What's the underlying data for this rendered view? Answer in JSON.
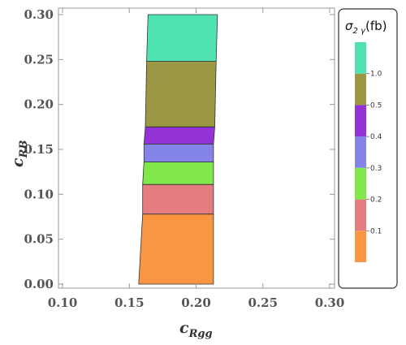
{
  "chart_data": {
    "type": "area",
    "xlabel": "c",
    "xlabel_sub": "Rgg",
    "ylabel": "c",
    "ylabel_sub": "RB",
    "xlim": [
      0.1,
      0.3
    ],
    "ylim": [
      0.0,
      0.3
    ],
    "xticks": [
      "0.10",
      "0.15",
      "0.20",
      "0.25",
      "0.30"
    ],
    "yticks": [
      "0.00",
      "0.05",
      "0.10",
      "0.15",
      "0.20",
      "0.25",
      "0.30"
    ],
    "grid": false,
    "legend": {
      "title_main": "σ",
      "title_sub": "2 γ",
      "title_unit": "(fb)",
      "placement": "right",
      "bins": [
        {
          "color": "#fa9642"
        },
        {
          "color": "#e57d80"
        },
        {
          "color": "#80e84a"
        },
        {
          "color": "#8484e8"
        },
        {
          "color": "#9332d6"
        },
        {
          "color": "#9c9745"
        },
        {
          "color": "#4ee3b1"
        }
      ],
      "labels": [
        "0.1",
        "0.2",
        "0.3",
        "0.4",
        "0.5",
        "1.0"
      ]
    },
    "bands": [
      {
        "color": "#fa9642",
        "y_low": 0.0,
        "y_high": 0.078,
        "x_left_bottom": 0.157,
        "x_right_bottom": 0.213,
        "x_left_top": 0.16,
        "x_right_top": 0.213
      },
      {
        "color": "#e57d80",
        "y_low": 0.078,
        "y_high": 0.111,
        "x_left_bottom": 0.16,
        "x_right_bottom": 0.213,
        "x_left_top": 0.16,
        "x_right_top": 0.213
      },
      {
        "color": "#80e84a",
        "y_low": 0.111,
        "y_high": 0.136,
        "x_left_bottom": 0.16,
        "x_right_bottom": 0.213,
        "x_left_top": 0.161,
        "x_right_top": 0.213
      },
      {
        "color": "#8484e8",
        "y_low": 0.136,
        "y_high": 0.156,
        "x_left_bottom": 0.161,
        "x_right_bottom": 0.213,
        "x_left_top": 0.161,
        "x_right_top": 0.213
      },
      {
        "color": "#9332d6",
        "y_low": 0.156,
        "y_high": 0.175,
        "x_left_bottom": 0.161,
        "x_right_bottom": 0.213,
        "x_left_top": 0.162,
        "x_right_top": 0.214
      },
      {
        "color": "#9c9745",
        "y_low": 0.175,
        "y_high": 0.248,
        "x_left_bottom": 0.162,
        "x_right_bottom": 0.214,
        "x_left_top": 0.163,
        "x_right_top": 0.215
      },
      {
        "color": "#4ee3b1",
        "y_low": 0.248,
        "y_high": 0.3,
        "x_left_bottom": 0.163,
        "x_right_bottom": 0.215,
        "x_left_top": 0.164,
        "x_right_top": 0.216
      }
    ]
  }
}
